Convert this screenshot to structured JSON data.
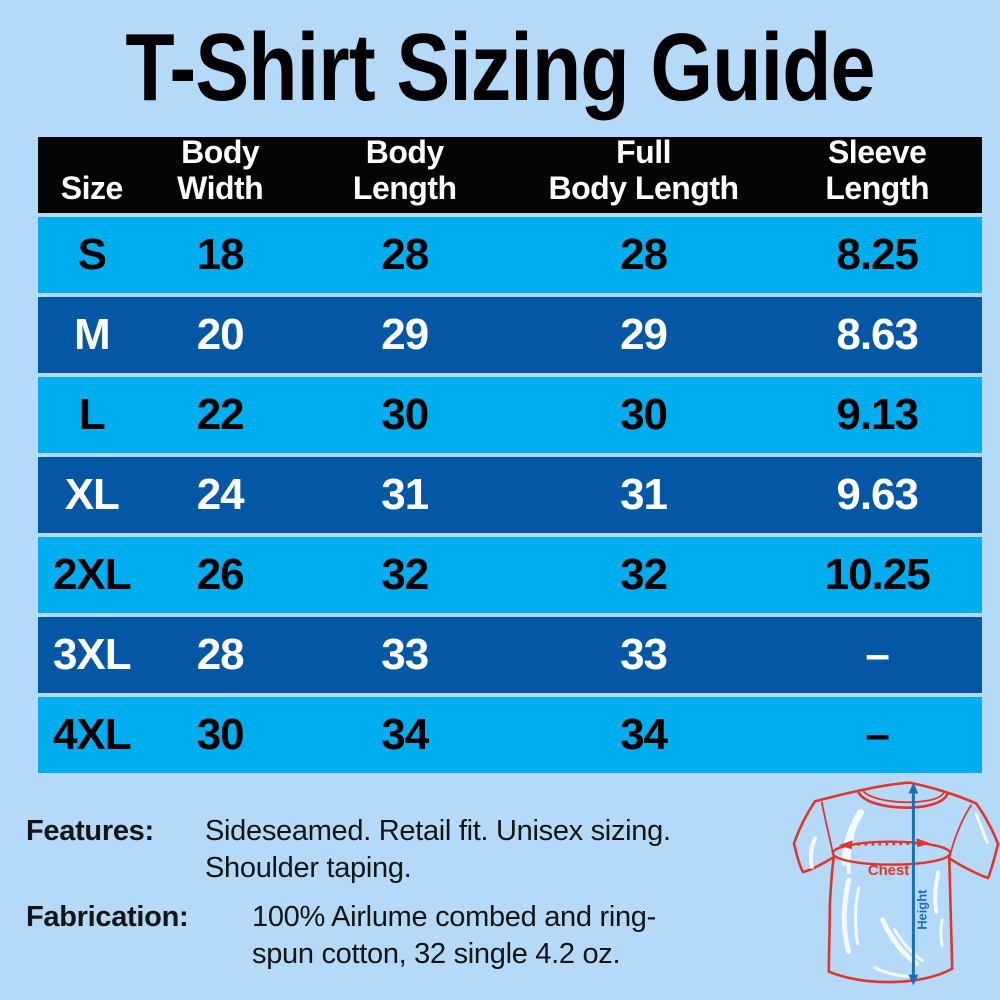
{
  "title": "T-Shirt Sizing Guide",
  "chart_data": {
    "type": "table",
    "title": "T-Shirt Sizing Guide",
    "columns": [
      "Size",
      "Body Width",
      "Body Length",
      "Full Body Length",
      "Sleeve Length"
    ],
    "rows": [
      [
        "S",
        "18",
        "28",
        "28",
        "8.25"
      ],
      [
        "M",
        "20",
        "29",
        "29",
        "8.63"
      ],
      [
        "L",
        "22",
        "30",
        "30",
        "9.13"
      ],
      [
        "XL",
        "24",
        "31",
        "31",
        "9.63"
      ],
      [
        "2XL",
        "26",
        "32",
        "32",
        "10.25"
      ],
      [
        "3XL",
        "28",
        "33",
        "33",
        "–"
      ],
      [
        "4XL",
        "30",
        "34",
        "34",
        "–"
      ]
    ],
    "row_shading": "alternating light cyan / dark blue starting light"
  },
  "table": {
    "header_lines": [
      [
        "Size"
      ],
      [
        "Body",
        "Width"
      ],
      [
        "Body",
        "Length"
      ],
      [
        "Full",
        "Body Length"
      ],
      [
        "Sleeve",
        "Length"
      ]
    ]
  },
  "notes": {
    "features_label": "Features:",
    "features_lines": [
      "Sideseamed. Retail fit. Unisex sizing.",
      "Shoulder taping."
    ],
    "fabrication_label": "Fabrication:",
    "fabrication_lines": [
      "100% Airlume combed and ring-",
      "spun cotton, 32 single 4.2 oz."
    ]
  },
  "diagram": {
    "chest_label": "Chest",
    "height_label": "Height"
  },
  "colors": {
    "page_bg": "#B5D9F8",
    "title_color": "#000000",
    "header_bg": "#050505",
    "header_text": "#FFFFFF",
    "row_light": "#00AEEF",
    "row_light_text": "#000000",
    "row_dark": "#0457A4",
    "row_dark_text": "#FFFFFF",
    "notes_text": "#151515",
    "shirt_red": "#E0352B",
    "measure_blue": "#1D6FB5"
  }
}
